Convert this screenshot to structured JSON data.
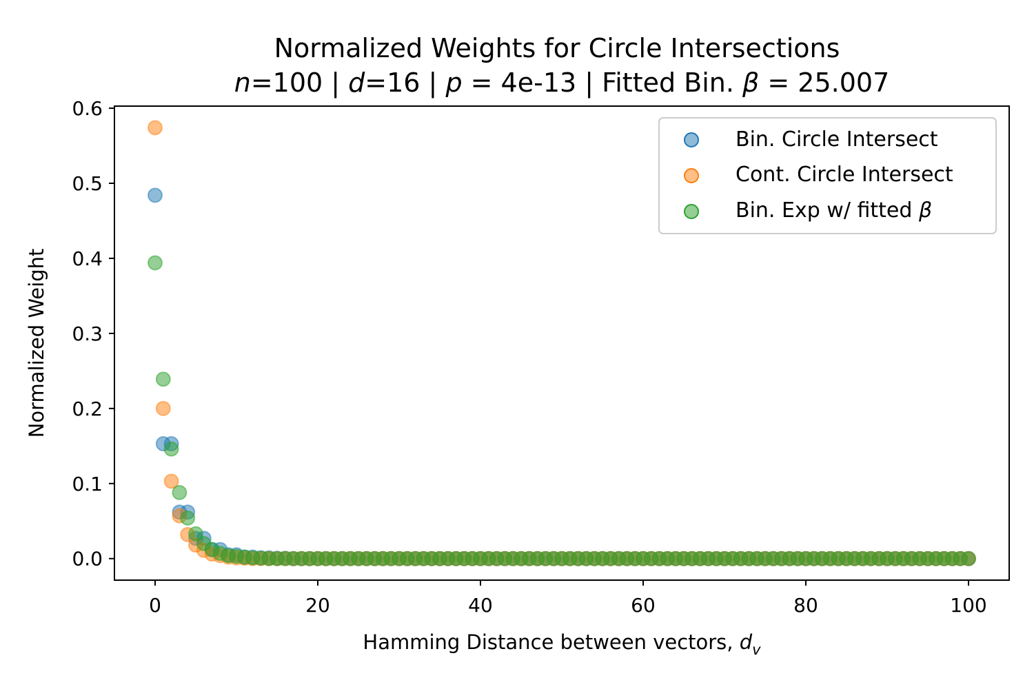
{
  "chart_data": {
    "type": "scatter",
    "title": "Normalized Weights for Circle Intersections",
    "subtitle": {
      "n_sym": "n",
      "n_val": "=100 | ",
      "d_sym": "d",
      "d_val": "=16 | ",
      "p_sym": "p",
      "p_val": " = 4e-13 | Fitted Bin. ",
      "beta_sym": "β",
      "beta_val": " = 25.007"
    },
    "xlabel": {
      "main": "Hamming Distance between vectors, ",
      "sym": "d",
      "sub": "v"
    },
    "ylabel": "Normalized Weight",
    "xlim": [
      -5,
      105
    ],
    "ylim": [
      -0.0287,
      0.6028
    ],
    "xticks": [
      0,
      20,
      40,
      60,
      80,
      100
    ],
    "yticks": [
      0.0,
      0.1,
      0.2,
      0.3,
      0.4,
      0.5,
      0.6
    ],
    "grid": false,
    "legend_position": "top-right",
    "legend": [
      {
        "label": "Bin. Circle Intersect",
        "color": "#1f77b4"
      },
      {
        "label": "Cont. Circle Intersect",
        "color": "#ff7f0e"
      },
      {
        "label": "Bin. Exp w/ fitted ",
        "sym": "β",
        "color": "#2ca02c"
      }
    ],
    "series": [
      {
        "name": "Bin. Circle Intersect",
        "color": "#1f77b4",
        "head": [
          [
            0,
            0.484
          ],
          [
            1,
            0.153
          ],
          [
            2,
            0.153
          ],
          [
            3,
            0.062
          ],
          [
            4,
            0.062
          ],
          [
            5,
            0.027
          ],
          [
            6,
            0.027
          ],
          [
            7,
            0.012
          ],
          [
            8,
            0.012
          ],
          [
            9,
            0.005
          ],
          [
            10,
            0.005
          ],
          [
            11,
            0.002
          ],
          [
            12,
            0.002
          ],
          [
            13,
            0.001
          ],
          [
            14,
            0.001
          ],
          [
            15,
            0.0005
          ],
          [
            16,
            0.0005
          ]
        ],
        "tail_from": 17,
        "tail_to": 100,
        "tail_value": 0.0
      },
      {
        "name": "Cont. Circle Intersect",
        "color": "#ff7f0e",
        "head": [
          [
            0,
            0.574
          ],
          [
            1,
            0.2
          ],
          [
            2,
            0.103
          ],
          [
            3,
            0.057
          ],
          [
            4,
            0.032
          ],
          [
            5,
            0.018
          ],
          [
            6,
            0.011
          ],
          [
            7,
            0.006
          ],
          [
            8,
            0.004
          ],
          [
            9,
            0.002
          ],
          [
            10,
            0.001
          ],
          [
            11,
            0.0005
          ]
        ],
        "tail_from": 12,
        "tail_to": 100,
        "tail_value": 0.0
      },
      {
        "name": "Bin. Exp w/ fitted β",
        "color": "#2ca02c",
        "head": [
          [
            0,
            0.394
          ],
          [
            1,
            0.239
          ],
          [
            2,
            0.146
          ],
          [
            3,
            0.088
          ],
          [
            4,
            0.054
          ],
          [
            5,
            0.033
          ],
          [
            6,
            0.02
          ],
          [
            7,
            0.012
          ],
          [
            8,
            0.007
          ],
          [
            9,
            0.004
          ],
          [
            10,
            0.003
          ],
          [
            11,
            0.002
          ],
          [
            12,
            0.001
          ],
          [
            13,
            0.0006
          ]
        ],
        "tail_from": 14,
        "tail_to": 100,
        "tail_value": 0.0
      }
    ]
  }
}
